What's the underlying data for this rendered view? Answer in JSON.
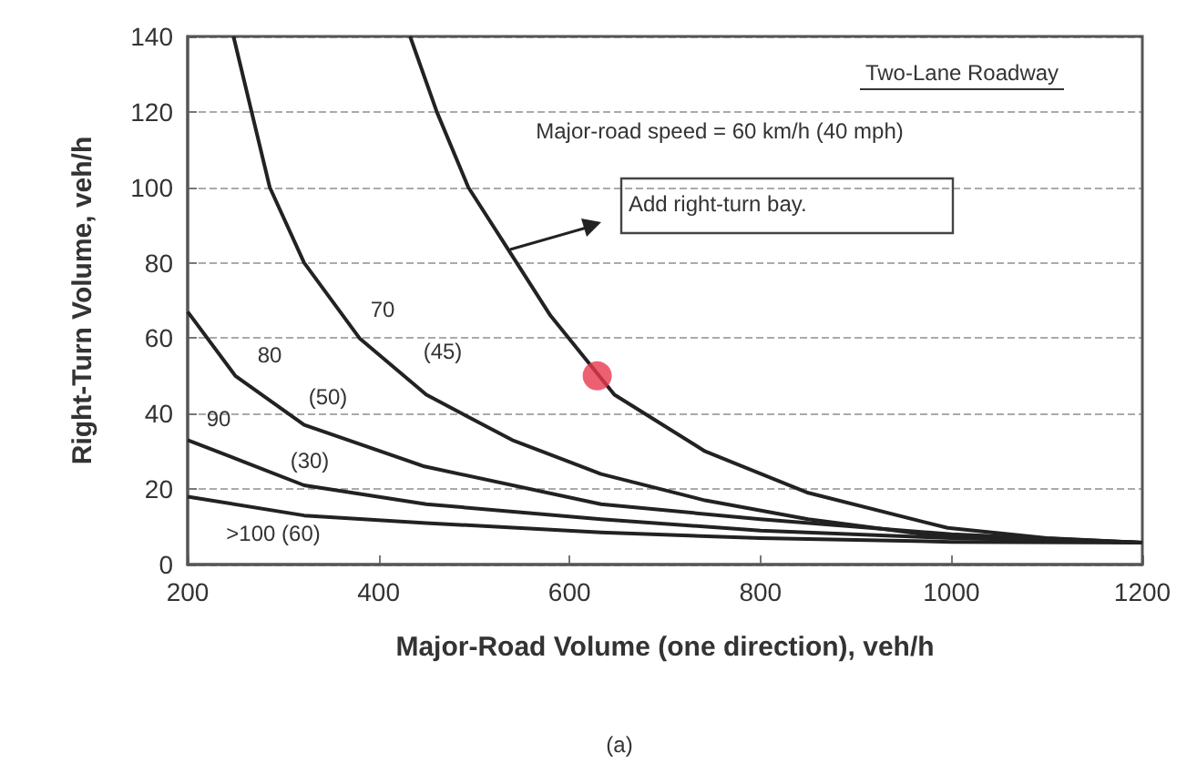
{
  "chart_data": {
    "type": "line",
    "xlabel": "Major-Road Volume (one direction), veh/h",
    "ylabel": "Right-Turn Volume, veh/h",
    "xlim": [
      200,
      1200
    ],
    "xticks": [
      200,
      400,
      600,
      800,
      1000,
      1200
    ],
    "ylim": [
      0,
      140
    ],
    "yticks": [
      0,
      20,
      40,
      60,
      80,
      100,
      120,
      140
    ],
    "grid": "y",
    "line_style": "solid",
    "series": [
      {
        "color": "#222222",
        "x": [
          433,
          461,
          494,
          532,
          580,
          647,
          742,
          850,
          996,
          1100,
          1200
        ],
        "values": [
          140,
          120,
          100,
          85,
          66,
          45,
          30,
          19,
          9.7,
          7,
          5.8
        ]
      },
      {
        "color": "#222222",
        "x": [
          248,
          286,
          322,
          380,
          450,
          540,
          633,
          742,
          850,
          971,
          1100,
          1200
        ],
        "values": [
          140,
          100,
          80,
          60,
          45,
          33,
          24,
          17,
          12,
          8,
          6.5,
          5.8
        ]
      },
      {
        "color": "#222222",
        "x": [
          200,
          250,
          322,
          448,
          633,
          800,
          1000,
          1200
        ],
        "values": [
          67,
          50,
          37,
          26,
          16,
          12,
          8,
          5.8
        ]
      },
      {
        "color": "#222222",
        "x": [
          200,
          322,
          450,
          633,
          800,
          1000,
          1200
        ],
        "values": [
          33,
          21,
          16,
          12,
          9,
          7,
          5.8
        ]
      },
      {
        "color": "#222222",
        "x": [
          200,
          322,
          450,
          633,
          800,
          1000,
          1200
        ],
        "values": [
          18,
          13,
          11,
          8.5,
          7,
          6,
          5.8
        ]
      },
      {
        "type": "scatter",
        "color": "#e8384f",
        "x": [
          629
        ],
        "values": [
          50
        ]
      }
    ],
    "annotations": [
      "Two-Lane Roadway",
      "Major-road speed = 60 km/h (40 mph)",
      "Add right-turn bay.",
      "(a)",
      "70",
      "(45)",
      "80",
      "(50)",
      "90",
      "(30)",
      ">100 (60)"
    ]
  }
}
